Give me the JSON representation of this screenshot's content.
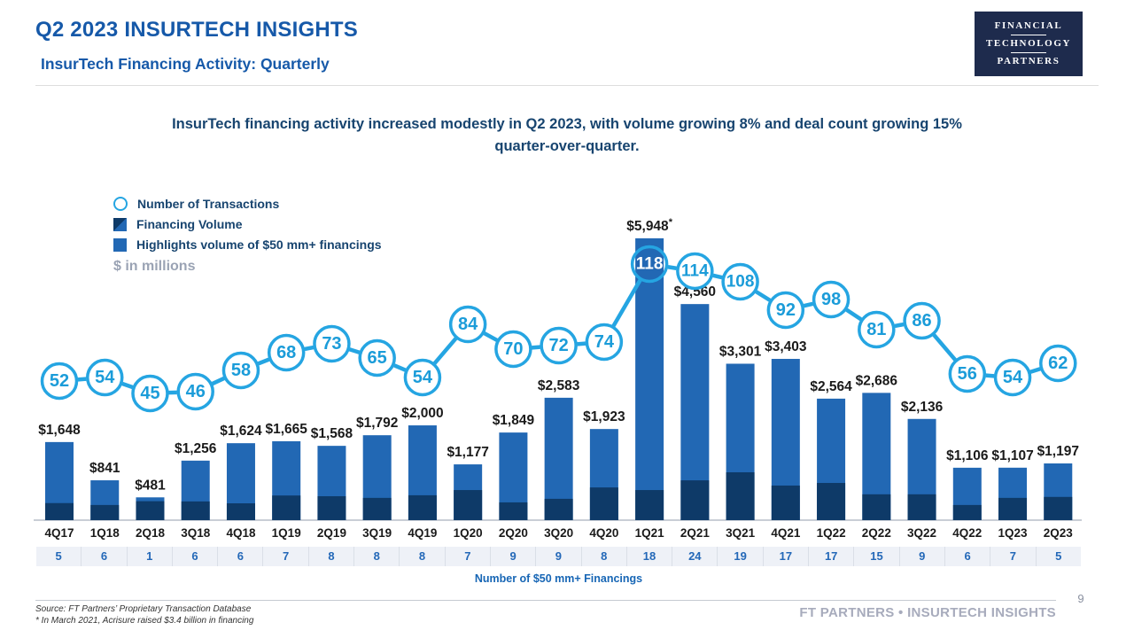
{
  "header": {
    "title": "Q2 2023 INSURTECH INSIGHTS",
    "subtitle": "InsurTech Financing Activity: Quarterly",
    "logo": {
      "line1": "FINANCIAL",
      "line2": "TECHNOLOGY",
      "line3": "PARTNERS"
    }
  },
  "headline": {
    "text": "InsurTech financing activity increased modestly in Q2 2023, with volume growing 8% and deal count growing 15% quarter-over-quarter."
  },
  "legend": {
    "transactions_label": "Number of Transactions",
    "volume_label": "Financing Volume",
    "highlights_label": "Highlights volume of $50 mm+ financings",
    "units_note": "$ in millions"
  },
  "chart_data": {
    "type": "bar+line",
    "title": "InsurTech Financing Activity: Quarterly",
    "units": "$ in millions",
    "categories": [
      "4Q17",
      "1Q18",
      "2Q18",
      "3Q18",
      "4Q18",
      "1Q19",
      "2Q19",
      "3Q19",
      "4Q19",
      "1Q20",
      "2Q20",
      "3Q20",
      "4Q20",
      "1Q21",
      "2Q21",
      "3Q21",
      "4Q21",
      "1Q22",
      "2Q22",
      "3Q22",
      "4Q22",
      "1Q23",
      "2Q23"
    ],
    "series": [
      {
        "name": "Financing Volume ($ mm)",
        "values": [
          1648,
          841,
          481,
          1256,
          1624,
          1665,
          1568,
          1792,
          2000,
          1177,
          1849,
          2583,
          1923,
          5948,
          4560,
          3301,
          3403,
          2564,
          2686,
          2136,
          1106,
          1107,
          1197
        ]
      },
      {
        "name": "Number of Transactions",
        "values": [
          52,
          54,
          45,
          46,
          58,
          68,
          73,
          65,
          54,
          84,
          70,
          72,
          74,
          118,
          114,
          108,
          92,
          98,
          81,
          86,
          56,
          54,
          62
        ]
      },
      {
        "name": "Number of $50 mm+ Financings",
        "values": [
          5,
          6,
          1,
          6,
          6,
          7,
          8,
          8,
          8,
          7,
          9,
          9,
          8,
          18,
          24,
          19,
          17,
          17,
          15,
          9,
          6,
          7,
          5
        ]
      },
      {
        "name": "Volume below $50 mm (dark segment, pixel-estimated)",
        "values": [
          360,
          320,
          400,
          395,
          355,
          520,
          505,
          470,
          525,
          635,
          375,
          450,
          690,
          635,
          840,
          1010,
          730,
          785,
          545,
          545,
          320,
          470,
          490
        ]
      }
    ],
    "bar_value_labels": [
      "$1,648",
      "$841",
      "$481",
      "$1,256",
      "$1,624",
      "$1,665",
      "$1,568",
      "$1,792",
      "$2,000",
      "$1,177",
      "$1,849",
      "$2,583",
      "$1,923",
      "$5,948",
      "$4,560",
      "$3,301",
      "$3,403",
      "$2,564",
      "$2,686",
      "$2,136",
      "$1,106",
      "$1,107",
      "$1,197"
    ],
    "footnote_index": 13,
    "footnote_marker": "*",
    "count_axis_label": "Number of $50 mm+ Financings",
    "ylim": [
      0,
      6500
    ],
    "grid": false,
    "legend_position": "top-left",
    "colors": {
      "bar_blue": "#2268B4",
      "bar_navy": "#0E3A68",
      "line_blue": "#25A5E2",
      "circle_number": "#1B9CD9",
      "bar_label": "#1A1A1A",
      "axis_label": "#1A1A1A",
      "baseline": "#C9CED6"
    }
  },
  "footer": {
    "source_line1": "Source: FT Partners’ Proprietary Transaction Database",
    "source_line2": "* In March 2021, Acrisure raised $3.4 billion in financing",
    "brand": "FT PARTNERS • INSURTECH INSIGHTS",
    "page_number": "9"
  }
}
